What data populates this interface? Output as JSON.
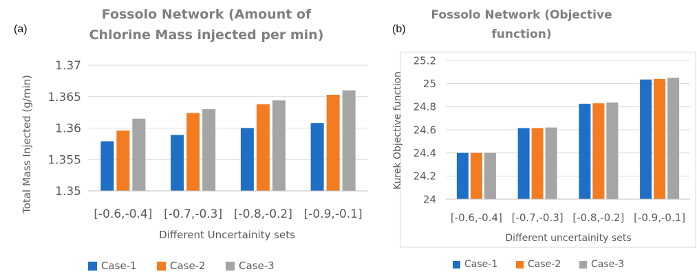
{
  "panels": [
    {
      "label": "(a)",
      "chart_data": {
        "type": "bar",
        "title_lines": [
          "Fossolo Network (Amount of",
          "Chlorine Mass injected per min)"
        ],
        "xlabel": "Different Uncertainity sets",
        "ylabel": "Total Mass Injected (g/min)",
        "categories": [
          "[-0.6,-0.4]",
          "[-0.7,-0.3]",
          "[-0.8,-0.2]",
          "[-0.9,-0.1]"
        ],
        "series": [
          {
            "name": "Case-1",
            "color": "#1f6fc6",
            "values": [
              1.3579,
              1.3589,
              1.36,
              1.3608
            ]
          },
          {
            "name": "Case-2",
            "color": "#f47c20",
            "values": [
              1.3596,
              1.3624,
              1.3638,
              1.3653
            ]
          },
          {
            "name": "Case-3",
            "color": "#a5a5a5",
            "values": [
              1.3615,
              1.363,
              1.3644,
              1.366
            ]
          }
        ],
        "ylim": [
          1.35,
          1.37
        ],
        "yticks": [
          "1.35",
          "1.355",
          "1.36",
          "1.365",
          "1.37"
        ],
        "ytick_values": [
          1.35,
          1.355,
          1.36,
          1.365,
          1.37
        ],
        "grid": true,
        "legend_position": "bottom"
      }
    },
    {
      "label": "(b)",
      "chart_data": {
        "type": "bar",
        "title_lines": [
          "Fossolo Network (Objective",
          "function)"
        ],
        "xlabel": "Different uncertainity sets",
        "ylabel": "Kurek Objective function",
        "categories": [
          "[-0.6,-0.4]",
          "[-0.7,-0.3]",
          "[-0.8,-0.2]",
          "[-0.9,-0.1]"
        ],
        "series": [
          {
            "name": "Case-1",
            "color": "#1f6fc6",
            "values": [
              24.4,
              24.615,
              24.825,
              25.035
            ]
          },
          {
            "name": "Case-2",
            "color": "#f47c20",
            "values": [
              24.4,
              24.615,
              24.83,
              25.04
            ]
          },
          {
            "name": "Case-3",
            "color": "#a5a5a5",
            "values": [
              24.4,
              24.62,
              24.835,
              25.05
            ]
          }
        ],
        "ylim": [
          24,
          25.2
        ],
        "yticks": [
          "24",
          "24.2",
          "24.4",
          "24.6",
          "24.8",
          "25",
          "25.2"
        ],
        "ytick_values": [
          24,
          24.2,
          24.4,
          24.6,
          24.8,
          25,
          25.2
        ],
        "grid": true,
        "legend_position": "bottom"
      }
    }
  ]
}
